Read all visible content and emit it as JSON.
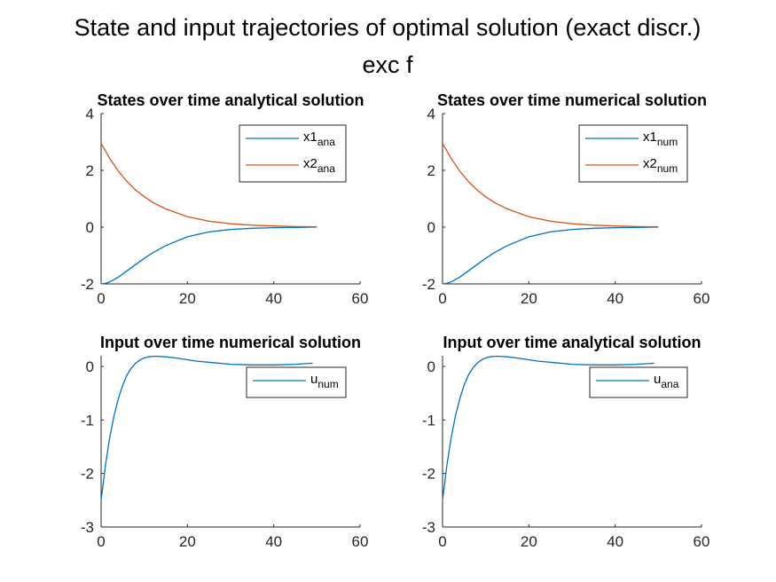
{
  "figure": {
    "title_line1": "State and input trajectories of optimal solution (exact discr.)",
    "title_line2": "exc f"
  },
  "colors": {
    "series1": "#0072BD",
    "series2": "#D95319",
    "axis": "#262626"
  },
  "chart_data": [
    {
      "type": "line",
      "title": "States over time analytical solution",
      "xlim": [
        0,
        60
      ],
      "ylim": [
        -2,
        4
      ],
      "xticks": [
        0,
        20,
        40,
        60
      ],
      "yticks": [
        -2,
        0,
        2,
        4
      ],
      "grid": false,
      "legend_position": "top-right",
      "series": [
        {
          "name": "x1",
          "name_sub": "ana",
          "color": "#0072BD",
          "x": [
            0,
            1,
            2,
            4,
            6,
            8,
            10,
            12,
            15,
            20,
            25,
            30,
            35,
            40,
            45,
            50
          ],
          "y": [
            -2.0,
            -1.98,
            -1.93,
            -1.76,
            -1.54,
            -1.32,
            -1.1,
            -0.9,
            -0.65,
            -0.34,
            -0.17,
            -0.08,
            -0.04,
            -0.02,
            -0.01,
            0.0
          ]
        },
        {
          "name": "x2",
          "name_sub": "ana",
          "color": "#D95319",
          "x": [
            0,
            2,
            4,
            6,
            8,
            10,
            12,
            15,
            20,
            25,
            30,
            35,
            40,
            45,
            50
          ],
          "y": [
            2.95,
            2.42,
            1.97,
            1.61,
            1.31,
            1.07,
            0.87,
            0.64,
            0.37,
            0.21,
            0.12,
            0.07,
            0.04,
            0.02,
            0.01
          ]
        }
      ]
    },
    {
      "type": "line",
      "title": "States over time numerical solution",
      "xlim": [
        0,
        60
      ],
      "ylim": [
        -2,
        4
      ],
      "xticks": [
        0,
        20,
        40,
        60
      ],
      "yticks": [
        -2,
        0,
        2,
        4
      ],
      "grid": false,
      "legend_position": "top-right",
      "series": [
        {
          "name": "x1",
          "name_sub": "num",
          "color": "#0072BD",
          "x": [
            0,
            1,
            2,
            4,
            6,
            8,
            10,
            12,
            15,
            20,
            25,
            30,
            35,
            40,
            45,
            50
          ],
          "y": [
            -2.0,
            -1.98,
            -1.93,
            -1.76,
            -1.54,
            -1.32,
            -1.1,
            -0.9,
            -0.65,
            -0.34,
            -0.17,
            -0.08,
            -0.04,
            -0.02,
            -0.01,
            0.0
          ]
        },
        {
          "name": "x2",
          "name_sub": "num",
          "color": "#D95319",
          "x": [
            0,
            2,
            4,
            6,
            8,
            10,
            12,
            15,
            20,
            25,
            30,
            35,
            40,
            45,
            50
          ],
          "y": [
            2.95,
            2.42,
            1.97,
            1.61,
            1.31,
            1.07,
            0.87,
            0.64,
            0.37,
            0.21,
            0.12,
            0.07,
            0.04,
            0.02,
            0.01
          ]
        }
      ]
    },
    {
      "type": "line",
      "title": "Input over time numerical solution",
      "xlim": [
        0,
        60
      ],
      "ylim": [
        -3,
        0.2
      ],
      "xticks": [
        0,
        20,
        40,
        60
      ],
      "yticks": [
        -3,
        -2,
        -1,
        0
      ],
      "grid": false,
      "legend_position": "top-right",
      "series": [
        {
          "name": "u",
          "name_sub": "num",
          "color": "#0072BD",
          "x": [
            0,
            1,
            2,
            3,
            4,
            5,
            6,
            7,
            8,
            9,
            10,
            11,
            12,
            13,
            15,
            18,
            22,
            26,
            30,
            35,
            40,
            45,
            49
          ],
          "y": [
            -2.5,
            -1.85,
            -1.33,
            -0.92,
            -0.6,
            -0.35,
            -0.16,
            -0.03,
            0.06,
            0.12,
            0.16,
            0.18,
            0.19,
            0.19,
            0.18,
            0.15,
            0.1,
            0.07,
            0.04,
            0.03,
            0.03,
            0.04,
            0.06
          ]
        }
      ]
    },
    {
      "type": "line",
      "title": "Input over time analytical solution",
      "xlim": [
        0,
        60
      ],
      "ylim": [
        -3,
        0.2
      ],
      "xticks": [
        0,
        20,
        40,
        60
      ],
      "yticks": [
        -3,
        -2,
        -1,
        0
      ],
      "grid": false,
      "legend_position": "top-right",
      "series": [
        {
          "name": "u",
          "name_sub": "ana",
          "color": "#0072BD",
          "x": [
            0,
            1,
            2,
            3,
            4,
            5,
            6,
            7,
            8,
            9,
            10,
            11,
            12,
            13,
            15,
            18,
            22,
            26,
            30,
            35,
            40,
            45,
            49
          ],
          "y": [
            -2.5,
            -1.85,
            -1.33,
            -0.92,
            -0.6,
            -0.35,
            -0.16,
            -0.03,
            0.06,
            0.12,
            0.16,
            0.18,
            0.19,
            0.19,
            0.18,
            0.15,
            0.1,
            0.07,
            0.04,
            0.03,
            0.03,
            0.04,
            0.06
          ]
        }
      ]
    }
  ]
}
